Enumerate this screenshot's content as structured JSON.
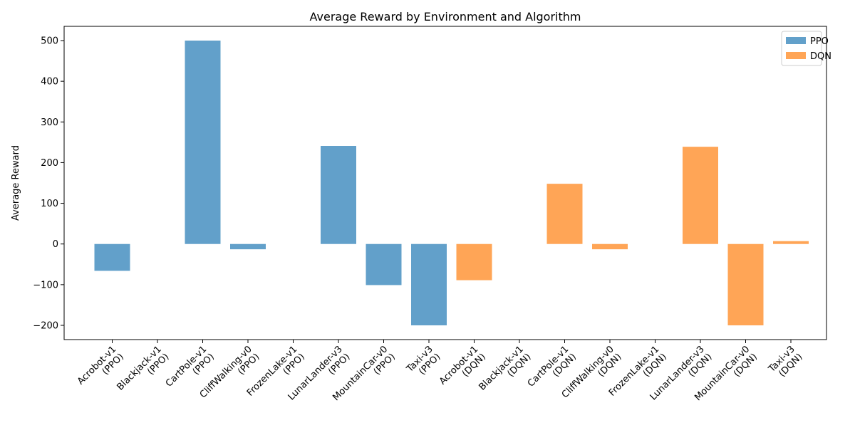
{
  "chart_data": {
    "type": "bar",
    "title": "Average Reward by Environment and Algorithm",
    "xlabel": "",
    "ylabel": "Average Reward",
    "ylim": [
      -235,
      535
    ],
    "yticks": [
      -200,
      -100,
      0,
      100,
      200,
      300,
      400,
      500
    ],
    "ytick_labels": [
      "−200",
      "−100",
      "0",
      "100",
      "200",
      "300",
      "400",
      "500"
    ],
    "grid": false,
    "legend_position": "top-right",
    "categories": [
      "Acrobot-v1\n(PPO)",
      "Blackjack-v1\n(PPO)",
      "CartPole-v1\n(PPO)",
      "CliffWalking-v0\n(PPO)",
      "FrozenLake-v1\n(PPO)",
      "LunarLander-v3\n(PPO)",
      "MountainCar-v0\n(PPO)",
      "Taxi-v3\n(PPO)",
      "Acrobot-v1\n(DQN)",
      "Blackjack-v1\n(DQN)",
      "CartPole-v1\n(DQN)",
      "CliffWalking-v0\n(DQN)",
      "FrozenLake-v1\n(DQN)",
      "LunarLander-v3\n(DQN)",
      "MountainCar-v0\n(DQN)",
      "Taxi-v3\n(DQN)"
    ],
    "series": [
      {
        "name": "PPO",
        "color": "#1f77b4",
        "alpha": 0.7,
        "values": [
          -66,
          0,
          500,
          -13,
          0,
          241,
          -101,
          -200,
          null,
          null,
          null,
          null,
          null,
          null,
          null,
          null
        ]
      },
      {
        "name": "DQN",
        "color": "#ff7f0e",
        "alpha": 0.7,
        "values": [
          null,
          null,
          null,
          null,
          null,
          null,
          null,
          null,
          -89,
          0,
          148,
          -13,
          0,
          239,
          -200,
          7
        ]
      }
    ]
  }
}
